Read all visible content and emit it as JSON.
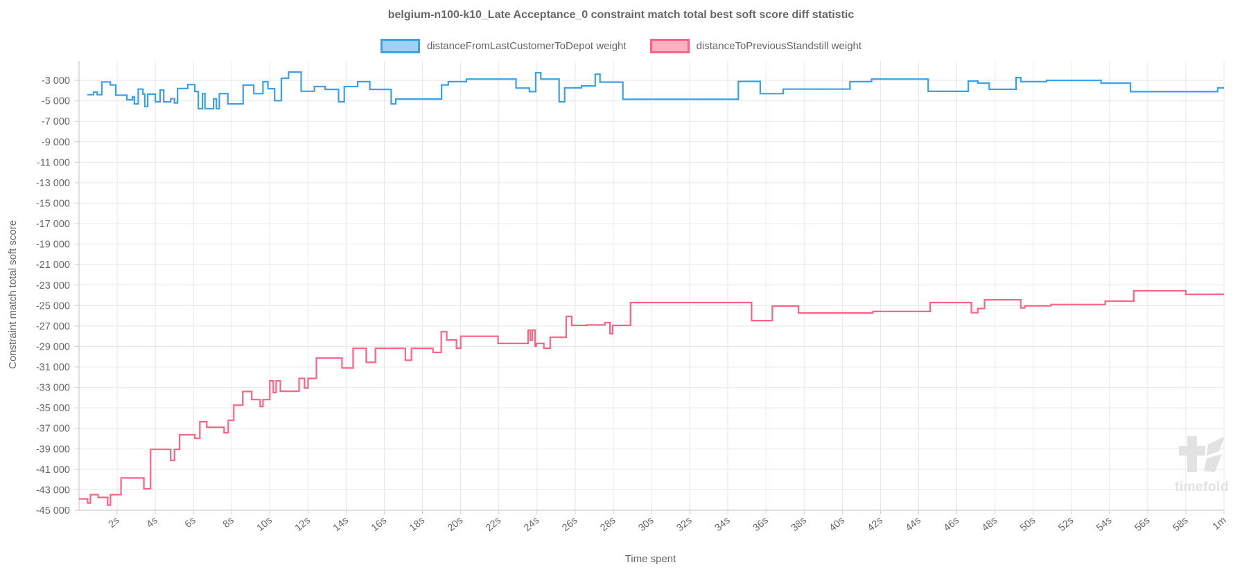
{
  "chart_data": {
    "type": "line",
    "step": true,
    "title": "belgium-n100-k10_Late Acceptance_0 constraint match total best soft score diff statistic",
    "grid": true,
    "legend_position": "top",
    "x_axis": {
      "label": "Time spent",
      "min": 0,
      "max": 60,
      "unit": "seconds",
      "tick_values": [
        2,
        4,
        6,
        8,
        10,
        12,
        14,
        16,
        18,
        20,
        22,
        24,
        26,
        28,
        30,
        32,
        34,
        36,
        38,
        40,
        42,
        44,
        46,
        48,
        50,
        52,
        54,
        56,
        58,
        60
      ],
      "tick_labels": [
        "2s",
        "4s",
        "6s",
        "8s",
        "10s",
        "12s",
        "14s",
        "16s",
        "18s",
        "20s",
        "22s",
        "24s",
        "26s",
        "28s",
        "30s",
        "32s",
        "34s",
        "36s",
        "38s",
        "40s",
        "42s",
        "44s",
        "46s",
        "48s",
        "50s",
        "52s",
        "54s",
        "56s",
        "58s",
        "1m"
      ]
    },
    "y_axis": {
      "label": "Constraint match total soft score",
      "min": -45000,
      "max": -1100,
      "tick_step": 2000,
      "tick_values": [
        -3000,
        -5000,
        -7000,
        -9000,
        -11000,
        -13000,
        -15000,
        -17000,
        -19000,
        -21000,
        -23000,
        -25000,
        -27000,
        -29000,
        -31000,
        -33000,
        -35000,
        -37000,
        -39000,
        -41000,
        -43000,
        -45000
      ],
      "tick_labels": [
        "-3 000",
        "-5 000",
        "-7 000",
        "-9 000",
        "-11 000",
        "-13 000",
        "-15 000",
        "-17 000",
        "-19 000",
        "-21 000",
        "-23 000",
        "-25 000",
        "-27 000",
        "-29 000",
        "-31 000",
        "-33 000",
        "-35 000",
        "-37 000",
        "-39 000",
        "-41 000",
        "-43 000",
        "-45 000"
      ]
    },
    "series": [
      {
        "name": "distanceFromLastCustomerToDepot weight",
        "color": "#36a2eb",
        "fill_color": "#9ad1f5",
        "points": [
          [
            0.44,
            -4400
          ],
          [
            0.76,
            -4150
          ],
          [
            0.95,
            -4400
          ],
          [
            1.2,
            -3150
          ],
          [
            1.64,
            -3450
          ],
          [
            1.93,
            -4450
          ],
          [
            2.51,
            -4900
          ],
          [
            2.8,
            -4600
          ],
          [
            2.9,
            -5300
          ],
          [
            3.1,
            -3850
          ],
          [
            3.35,
            -4350
          ],
          [
            3.45,
            -5550
          ],
          [
            3.6,
            -4350
          ],
          [
            4.0,
            -5100
          ],
          [
            4.25,
            -3950
          ],
          [
            4.44,
            -5100
          ],
          [
            4.8,
            -4800
          ],
          [
            5.0,
            -5200
          ],
          [
            5.16,
            -3800
          ],
          [
            5.7,
            -3410
          ],
          [
            6.07,
            -4080
          ],
          [
            6.25,
            -5770
          ],
          [
            6.47,
            -4300
          ],
          [
            6.6,
            -5770
          ],
          [
            7.05,
            -4800
          ],
          [
            7.2,
            -5770
          ],
          [
            7.35,
            -4300
          ],
          [
            7.8,
            -5300
          ],
          [
            8.6,
            -3470
          ],
          [
            9.16,
            -4300
          ],
          [
            9.64,
            -3130
          ],
          [
            9.9,
            -3810
          ],
          [
            10.25,
            -4980
          ],
          [
            10.6,
            -2790
          ],
          [
            10.98,
            -2190
          ],
          [
            11.64,
            -4060
          ],
          [
            12.33,
            -3600
          ],
          [
            12.9,
            -3880
          ],
          [
            13.6,
            -5100
          ],
          [
            13.9,
            -3600
          ],
          [
            14.6,
            -3130
          ],
          [
            15.24,
            -3880
          ],
          [
            16.36,
            -5300
          ],
          [
            16.6,
            -4830
          ],
          [
            19.0,
            -3450
          ],
          [
            19.35,
            -3130
          ],
          [
            20.3,
            -2870
          ],
          [
            22.9,
            -3750
          ],
          [
            23.6,
            -4100
          ],
          [
            23.93,
            -2250
          ],
          [
            24.2,
            -2870
          ],
          [
            25.16,
            -5100
          ],
          [
            25.45,
            -3730
          ],
          [
            26.33,
            -3540
          ],
          [
            27.05,
            -2400
          ],
          [
            27.3,
            -3170
          ],
          [
            28.5,
            -4850
          ],
          [
            34.55,
            -3100
          ],
          [
            35.7,
            -4300
          ],
          [
            36.9,
            -3850
          ],
          [
            40.4,
            -3130
          ],
          [
            41.53,
            -2870
          ],
          [
            44.5,
            -4070
          ],
          [
            46.6,
            -3070
          ],
          [
            47.1,
            -3270
          ],
          [
            47.7,
            -3870
          ],
          [
            49.1,
            -2730
          ],
          [
            49.35,
            -3130
          ],
          [
            50.7,
            -3000
          ],
          [
            53.56,
            -3270
          ],
          [
            55.1,
            -4100
          ],
          [
            59.67,
            -3730
          ]
        ]
      },
      {
        "name": "distanceToPreviousStandstill weight",
        "color": "#ff6384",
        "fill_color": "#ffb1c1",
        "points": [
          [
            0,
            -43900
          ],
          [
            0.45,
            -44300
          ],
          [
            0.6,
            -43480
          ],
          [
            1.0,
            -43750
          ],
          [
            1.5,
            -44500
          ],
          [
            1.65,
            -43480
          ],
          [
            2.2,
            -41850
          ],
          [
            3.4,
            -42900
          ],
          [
            3.75,
            -39050
          ],
          [
            4.8,
            -40130
          ],
          [
            5.0,
            -39050
          ],
          [
            5.27,
            -37630
          ],
          [
            6.07,
            -37970
          ],
          [
            6.33,
            -36350
          ],
          [
            6.69,
            -36890
          ],
          [
            7.6,
            -37430
          ],
          [
            7.82,
            -36220
          ],
          [
            8.11,
            -34730
          ],
          [
            8.58,
            -33400
          ],
          [
            9.05,
            -34190
          ],
          [
            9.49,
            -34870
          ],
          [
            9.64,
            -34190
          ],
          [
            10.0,
            -32360
          ],
          [
            10.18,
            -33510
          ],
          [
            10.33,
            -32360
          ],
          [
            10.55,
            -33370
          ],
          [
            11.53,
            -32120
          ],
          [
            11.82,
            -33060
          ],
          [
            12.0,
            -32120
          ],
          [
            12.44,
            -30130
          ],
          [
            13.78,
            -31100
          ],
          [
            14.36,
            -29180
          ],
          [
            15.05,
            -30550
          ],
          [
            15.53,
            -29180
          ],
          [
            17.1,
            -30350
          ],
          [
            17.42,
            -29180
          ],
          [
            18.55,
            -29580
          ],
          [
            18.98,
            -27560
          ],
          [
            19.27,
            -28370
          ],
          [
            19.78,
            -29180
          ],
          [
            20.0,
            -28000
          ],
          [
            21.96,
            -28700
          ],
          [
            23.53,
            -27400
          ],
          [
            23.65,
            -28400
          ],
          [
            23.75,
            -27400
          ],
          [
            23.9,
            -28980
          ],
          [
            23.96,
            -28700
          ],
          [
            24.36,
            -29180
          ],
          [
            24.69,
            -28100
          ],
          [
            25.53,
            -26060
          ],
          [
            25.82,
            -26940
          ],
          [
            26.62,
            -26890
          ],
          [
            27.56,
            -26670
          ],
          [
            27.82,
            -27760
          ],
          [
            27.96,
            -26940
          ],
          [
            28.9,
            -24710
          ],
          [
            35.24,
            -26470
          ],
          [
            36.33,
            -25050
          ],
          [
            37.7,
            -25730
          ],
          [
            41.6,
            -25580
          ],
          [
            44.6,
            -24710
          ],
          [
            46.76,
            -25700
          ],
          [
            47.1,
            -25290
          ],
          [
            47.45,
            -24440
          ],
          [
            49.35,
            -25230
          ],
          [
            49.56,
            -25030
          ],
          [
            50.94,
            -24900
          ],
          [
            53.78,
            -24570
          ],
          [
            55.27,
            -23560
          ],
          [
            58.0,
            -23900
          ]
        ]
      }
    ]
  },
  "watermark": {
    "text": "timefold"
  },
  "colors": {
    "title_text": "#666666",
    "axis_text": "#666666",
    "gridline": "#e8e8e8",
    "axis_line": "#cccccc",
    "watermark": "#e2e2e2"
  }
}
